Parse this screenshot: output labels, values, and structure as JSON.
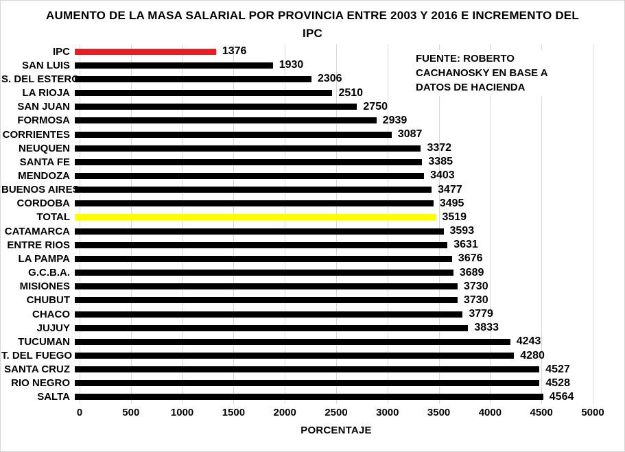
{
  "ui": {
    "title_line1": "AUMENTO DE LA MASA SALARIAL POR PROVINCIA ENTRE 2003 Y 2016 E INCREMENTO DEL",
    "title_line2": "IPC",
    "source_lines": [
      "FUENTE: ROBERTO",
      "CACHANOSKY EN BASE A",
      "DATOS DE HACIENDA"
    ],
    "colors": {
      "bar_default": "#000000",
      "bar_ipc": "#ed1c24",
      "bar_total": "#ffff00",
      "gridline": "#d9d9d9",
      "background": "#ffffff",
      "text": "#000000"
    }
  },
  "chart_data": {
    "type": "bar",
    "orientation": "horizontal",
    "title": "AUMENTO DE LA MASA SALARIAL POR PROVINCIA ENTRE 2003 Y 2016 E INCREMENTO DEL IPC",
    "xlabel": "PORCENTAJE",
    "ylabel": "",
    "xlim": [
      0,
      5000
    ],
    "xticks": [
      0,
      500,
      1000,
      1500,
      2000,
      2500,
      3000,
      3500,
      4000,
      4500,
      5000
    ],
    "grid": true,
    "legend": false,
    "data_labels": true,
    "categories": [
      "IPC",
      "SAN LUIS",
      "S. DEL ESTERO",
      "LA RIOJA",
      "SAN JUAN",
      "FORMOSA",
      "CORRIENTES",
      "NEUQUEN",
      "SANTA FE",
      "MENDOZA",
      "BUENOS AIRES",
      "CORDOBA",
      "TOTAL",
      "CATAMARCA",
      "ENTRE RIOS",
      "LA PAMPA",
      "G.C.B.A.",
      "MISIONES",
      "CHUBUT",
      "CHACO",
      "JUJUY",
      "TUCUMAN",
      "T. DEL FUEGO",
      "SANTA CRUZ",
      "RIO NEGRO",
      "SALTA"
    ],
    "values": [
      1376,
      1930,
      2306,
      2510,
      2750,
      2939,
      3087,
      3372,
      3385,
      3403,
      3477,
      3495,
      3519,
      3593,
      3631,
      3676,
      3689,
      3730,
      3730,
      3779,
      3833,
      4243,
      4280,
      4527,
      4528,
      4564
    ],
    "bar_colors": {
      "IPC": "#ed1c24",
      "TOTAL": "#ffff00",
      "default": "#000000"
    },
    "source_note": "FUENTE: ROBERTO CACHANOSKY EN BASE A DATOS DE HACIENDA"
  }
}
